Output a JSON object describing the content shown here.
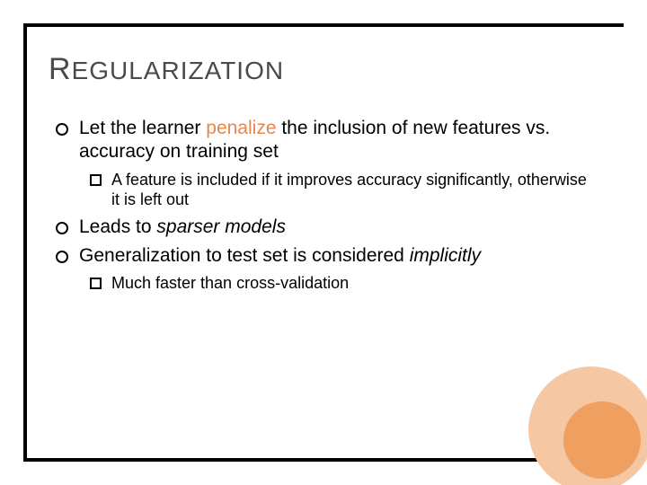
{
  "colors": {
    "border": "#000000",
    "title": "#4a4a4a",
    "body": "#000000",
    "accent": "#e08a4f",
    "deco_outer": "#f6c7a3",
    "deco_inner": "#ef9f5f",
    "background": "#ffffff"
  },
  "title": {
    "cap": "R",
    "rest": "EGULARIZATION"
  },
  "bullets": [
    {
      "level": 1,
      "runs": [
        {
          "text": "Let the learner "
        },
        {
          "text": "penalize",
          "accent": true
        },
        {
          "text": " the inclusion of new features vs. accuracy on training set"
        }
      ]
    },
    {
      "level": 2,
      "runs": [
        {
          "text": "A feature is included if it improves accuracy significantly, otherwise it is left out"
        }
      ]
    },
    {
      "level": 1,
      "runs": [
        {
          "text": "Leads to "
        },
        {
          "text": "sparser models",
          "italic": true
        }
      ]
    },
    {
      "level": 1,
      "runs": [
        {
          "text": "Generalization to test set is considered "
        },
        {
          "text": "implicitly",
          "italic": true
        }
      ]
    },
    {
      "level": 2,
      "runs": [
        {
          "text": "Much faster than cross-validation"
        }
      ]
    }
  ]
}
